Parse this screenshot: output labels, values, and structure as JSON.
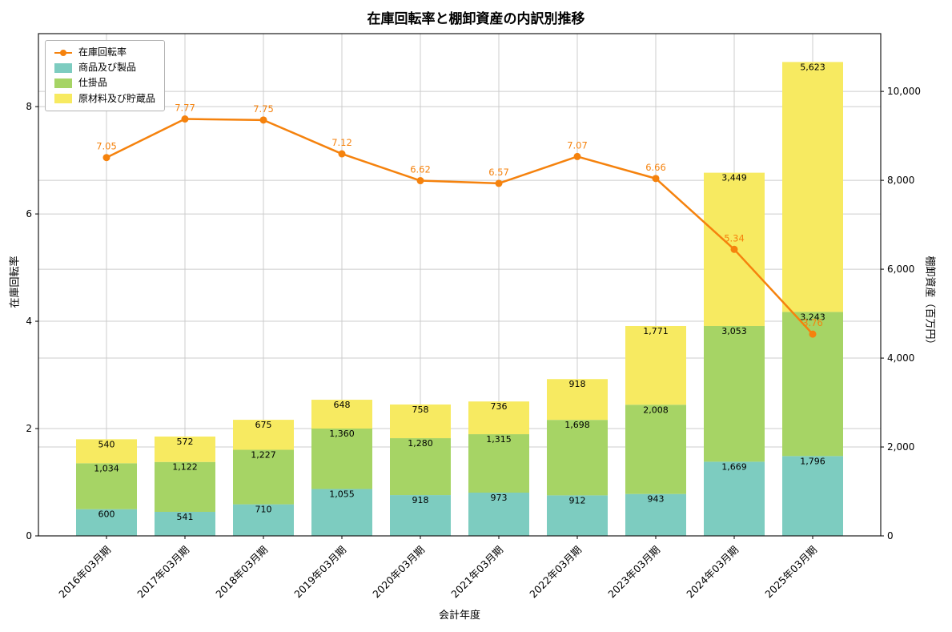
{
  "title": "在庫回転率と棚卸資産の内訳別推移",
  "x_axis_label": "会計年度",
  "left_axis_label": "在庫回転率",
  "right_axis_label": "棚卸資産（百万円）",
  "legend": {
    "items": [
      {
        "label": "在庫回転率",
        "marker": "line",
        "color": "#f5820d"
      },
      {
        "label": "商品及び製品",
        "marker": "patch",
        "color": "#7dccc0"
      },
      {
        "label": "仕掛品",
        "marker": "patch",
        "color": "#a6d465"
      },
      {
        "label": "原材料及び貯蔵品",
        "marker": "patch",
        "color": "#f7ea61"
      }
    ]
  },
  "chart_data": {
    "type": "bar",
    "subtype": "stacked-bars-with-line",
    "title": "在庫回転率と棚卸資産の内訳別推移",
    "xlabel": "会計年度",
    "categories": [
      "2016年03月期",
      "2017年03月期",
      "2018年03月期",
      "2019年03月期",
      "2020年03月期",
      "2021年03月期",
      "2022年03月期",
      "2023年03月期",
      "2024年03月期",
      "2025年03月期"
    ],
    "bar_series": [
      {
        "name": "商品及び製品",
        "axis": "right",
        "color": "#7dccc0",
        "values": [
          600,
          541,
          710,
          1055,
          918,
          973,
          912,
          943,
          1669,
          1796
        ]
      },
      {
        "name": "仕掛品",
        "axis": "right",
        "color": "#a6d465",
        "values": [
          1034,
          1122,
          1227,
          1360,
          1280,
          1315,
          1698,
          2008,
          3053,
          3243
        ]
      },
      {
        "name": "原材料及び貯蔵品",
        "axis": "right",
        "color": "#f7ea61",
        "values": [
          540,
          572,
          675,
          648,
          758,
          736,
          918,
          1771,
          3449,
          5623
        ]
      }
    ],
    "line_series": {
      "name": "在庫回転率",
      "axis": "left",
      "color": "#f5820d",
      "values": [
        7.05,
        7.77,
        7.75,
        7.12,
        6.62,
        6.57,
        7.07,
        6.66,
        5.34,
        3.76
      ]
    },
    "left_axis": {
      "label": "在庫回転率",
      "min": 0,
      "max": 9.36,
      "ticks": [
        0,
        2,
        4,
        6,
        8
      ]
    },
    "right_axis": {
      "label": "棚卸資産（百万円）",
      "min": 0,
      "max": 11300,
      "ticks": [
        0,
        2000,
        4000,
        6000,
        8000,
        10000
      ]
    },
    "grid": true,
    "legend_position": "upper left",
    "grid_color": "#cccccc"
  }
}
